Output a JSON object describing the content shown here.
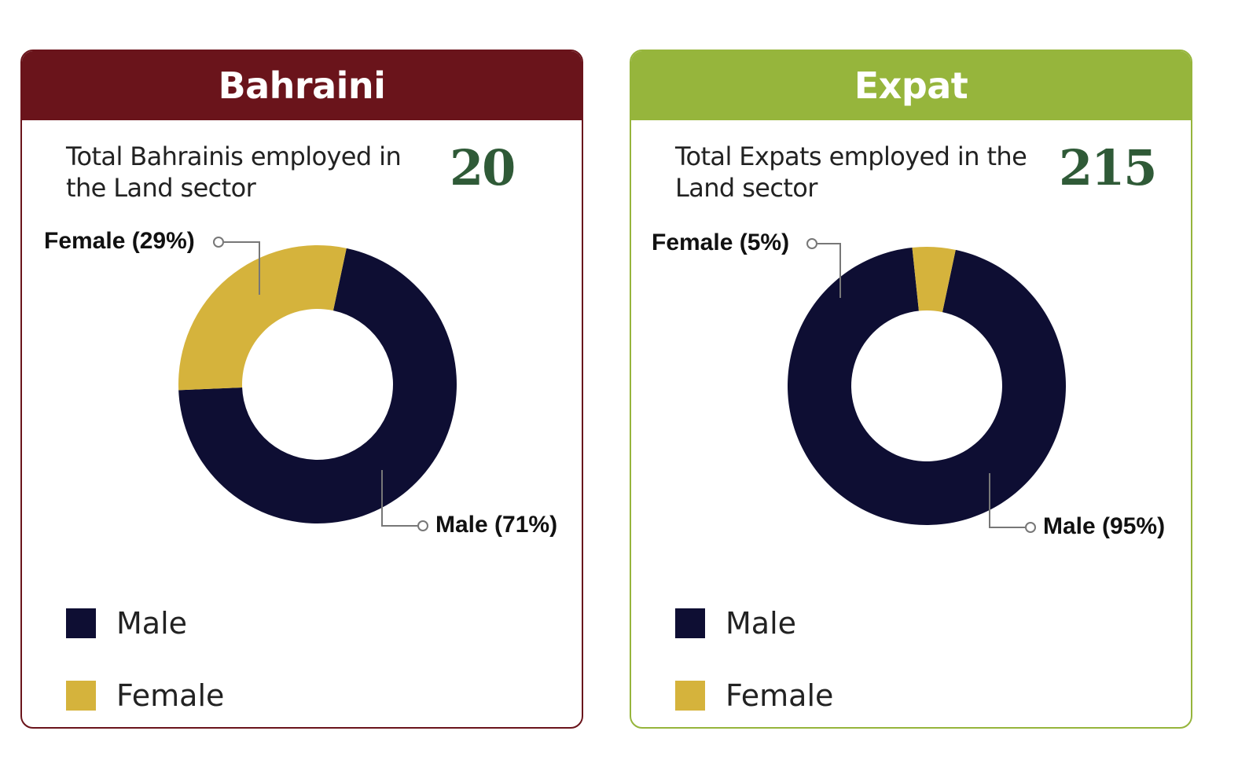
{
  "colors": {
    "male": "#0e0e33",
    "female": "#d5b33c",
    "value": "#2f5a37",
    "bahraini": "#6a141b",
    "expat": "#96b53c"
  },
  "cards": [
    {
      "header": "Bahraini",
      "total_label": "Total Bahrainis employed in the Land sector",
      "total_value": "20",
      "female_label": "Female (29%)",
      "male_label": "Male (71%)",
      "legend": [
        "Male",
        "Female"
      ]
    },
    {
      "header": "Expat",
      "total_label": "Total Expats employed in the Land sector",
      "total_value": "215",
      "female_label": "Female (5%)",
      "male_label": "Male (95%)",
      "legend": [
        "Male",
        "Female"
      ]
    }
  ],
  "chart_data": [
    {
      "type": "pie",
      "title": "Bahraini",
      "categories": [
        "Male",
        "Female"
      ],
      "values": [
        71,
        29
      ],
      "unit": "%",
      "total": 20,
      "legend": "bottom-left"
    },
    {
      "type": "pie",
      "title": "Expat",
      "categories": [
        "Male",
        "Female"
      ],
      "values": [
        95,
        5
      ],
      "unit": "%",
      "total": 215,
      "legend": "bottom-left"
    }
  ]
}
